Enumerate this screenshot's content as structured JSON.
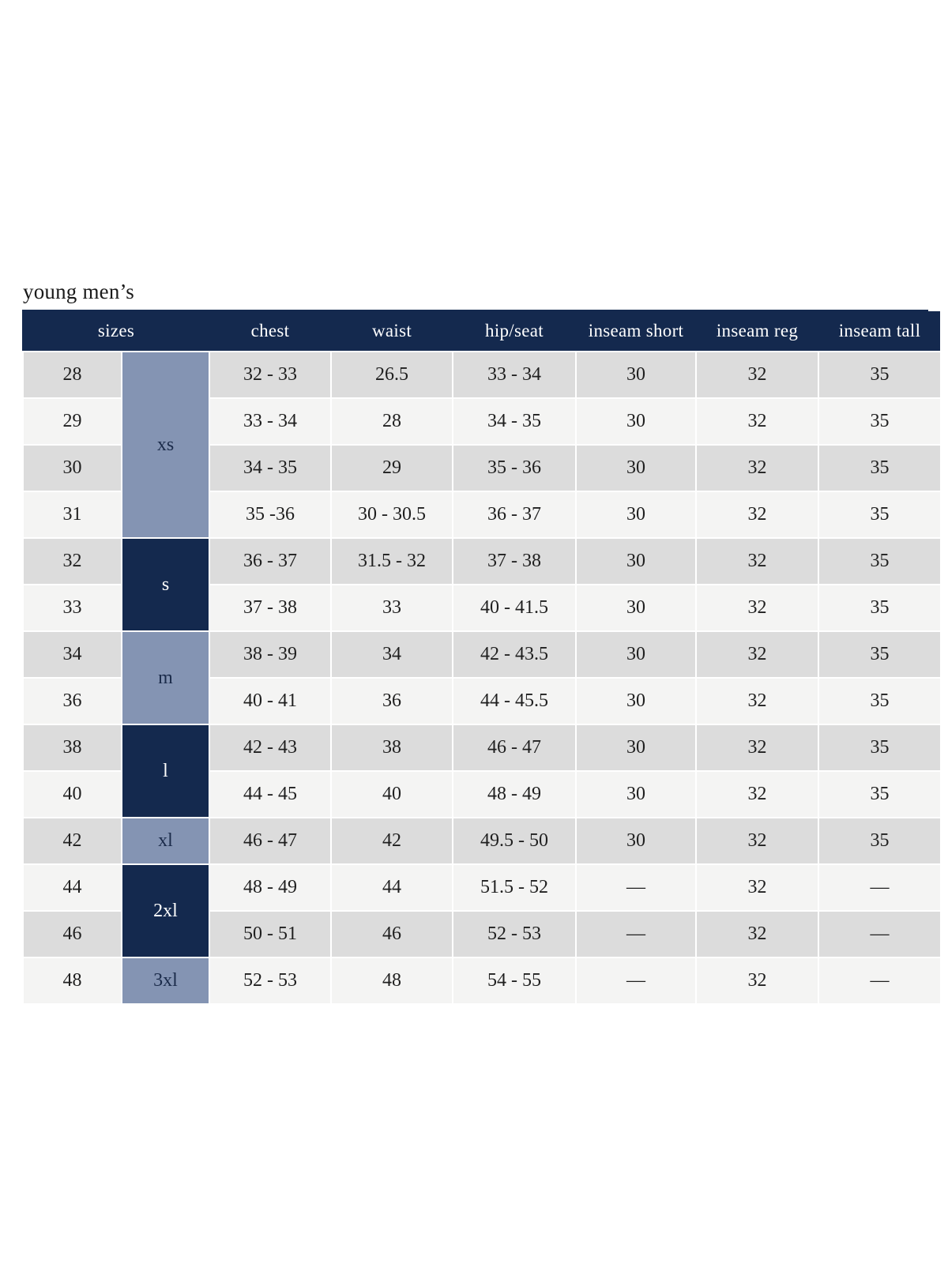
{
  "page": {
    "title": "young men’s"
  },
  "colors": {
    "header_bg": "#14294e",
    "header_text": "#ffffff",
    "group_light_bg": "#8494b3",
    "group_light_text": "#1b2b4a",
    "group_dark_bg": "#14294e",
    "group_dark_text": "#ffffff",
    "row_odd_bg": "#dcdcdc",
    "row_even_bg": "#f4f4f3",
    "body_text": "#1f1f1f",
    "title_text": "#1a1a1a"
  },
  "table": {
    "headers": [
      "sizes",
      "chest",
      "waist",
      "hip/seat",
      "inseam short",
      "inseam reg",
      "inseam tall"
    ],
    "groups": [
      {
        "label": "xs",
        "span": 4,
        "tone": "light"
      },
      {
        "label": "s",
        "span": 2,
        "tone": "dark"
      },
      {
        "label": "m",
        "span": 2,
        "tone": "light"
      },
      {
        "label": "l",
        "span": 2,
        "tone": "dark"
      },
      {
        "label": "xl",
        "span": 1,
        "tone": "light"
      },
      {
        "label": "2xl",
        "span": 2,
        "tone": "dark"
      },
      {
        "label": "3xl",
        "span": 1,
        "tone": "light"
      }
    ],
    "rows": [
      [
        "28",
        "32 - 33",
        "26.5",
        "33 - 34",
        "30",
        "32",
        "35"
      ],
      [
        "29",
        "33 - 34",
        "28",
        "34 - 35",
        "30",
        "32",
        "35"
      ],
      [
        "30",
        "34 - 35",
        "29",
        "35 - 36",
        "30",
        "32",
        "35"
      ],
      [
        "31",
        "35 -36",
        "30 - 30.5",
        "36 - 37",
        "30",
        "32",
        "35"
      ],
      [
        "32",
        "36 - 37",
        "31.5 - 32",
        "37 - 38",
        "30",
        "32",
        "35"
      ],
      [
        "33",
        "37 - 38",
        "33",
        "40 - 41.5",
        "30",
        "32",
        "35"
      ],
      [
        "34",
        "38 - 39",
        "34",
        "42 - 43.5",
        "30",
        "32",
        "35"
      ],
      [
        "36",
        "40 - 41",
        "36",
        "44 - 45.5",
        "30",
        "32",
        "35"
      ],
      [
        "38",
        "42 - 43",
        "38",
        "46 - 47",
        "30",
        "32",
        "35"
      ],
      [
        "40",
        "44 - 45",
        "40",
        "48 - 49",
        "30",
        "32",
        "35"
      ],
      [
        "42",
        "46 - 47",
        "42",
        "49.5 - 50",
        "30",
        "32",
        "35"
      ],
      [
        "44",
        "48 - 49",
        "44",
        "51.5 - 52",
        "—",
        "32",
        "—"
      ],
      [
        "46",
        "50 - 51",
        "46",
        "52 - 53",
        "—",
        "32",
        "—"
      ],
      [
        "48",
        "52 - 53",
        "48",
        "54 - 55",
        "—",
        "32",
        "—"
      ]
    ]
  }
}
